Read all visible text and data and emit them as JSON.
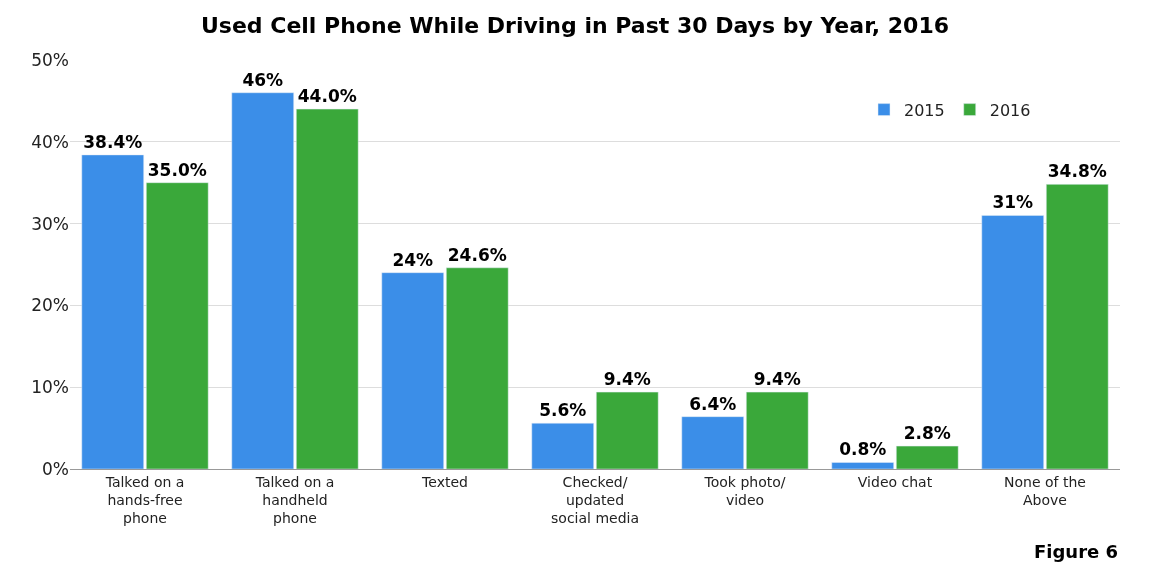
{
  "chart_data": {
    "type": "bar",
    "title": "Used Cell Phone While Driving in Past 30 Days by Year, 2016",
    "categories": [
      "Talked on a hands-free phone",
      "Talked on a handheld phone",
      "Texted",
      "Checked/ updated social media",
      "Took photo/ video",
      "Video chat",
      "None of the Above"
    ],
    "series": [
      {
        "name": "2015",
        "color": "#3b8ee8",
        "values": [
          38.4,
          46,
          24,
          5.6,
          6.4,
          0.8,
          31
        ],
        "value_labels": [
          "38.4%",
          "46%",
          "24%",
          "5.6%",
          "6.4%",
          "0.8%",
          "31%"
        ]
      },
      {
        "name": "2016",
        "color": "#3aa83a",
        "values": [
          35.0,
          44.0,
          24.6,
          9.4,
          9.4,
          2.8,
          34.8
        ],
        "value_labels": [
          "35.0%",
          "44.0%",
          "24.6%",
          "9.4%",
          "9.4%",
          "2.8%",
          "34.8%"
        ]
      }
    ],
    "ylim": [
      0,
      50
    ],
    "yticks": [
      {
        "value": 0,
        "label": "0%"
      },
      {
        "value": 10,
        "label": "10%"
      },
      {
        "value": 20,
        "label": "20%"
      },
      {
        "value": 30,
        "label": "30%"
      },
      {
        "value": 40,
        "label": "40%"
      },
      {
        "value": 50,
        "label": "50%"
      }
    ],
    "grid": "y",
    "legend": "top right",
    "annotations": [
      "Figure 6"
    ]
  }
}
